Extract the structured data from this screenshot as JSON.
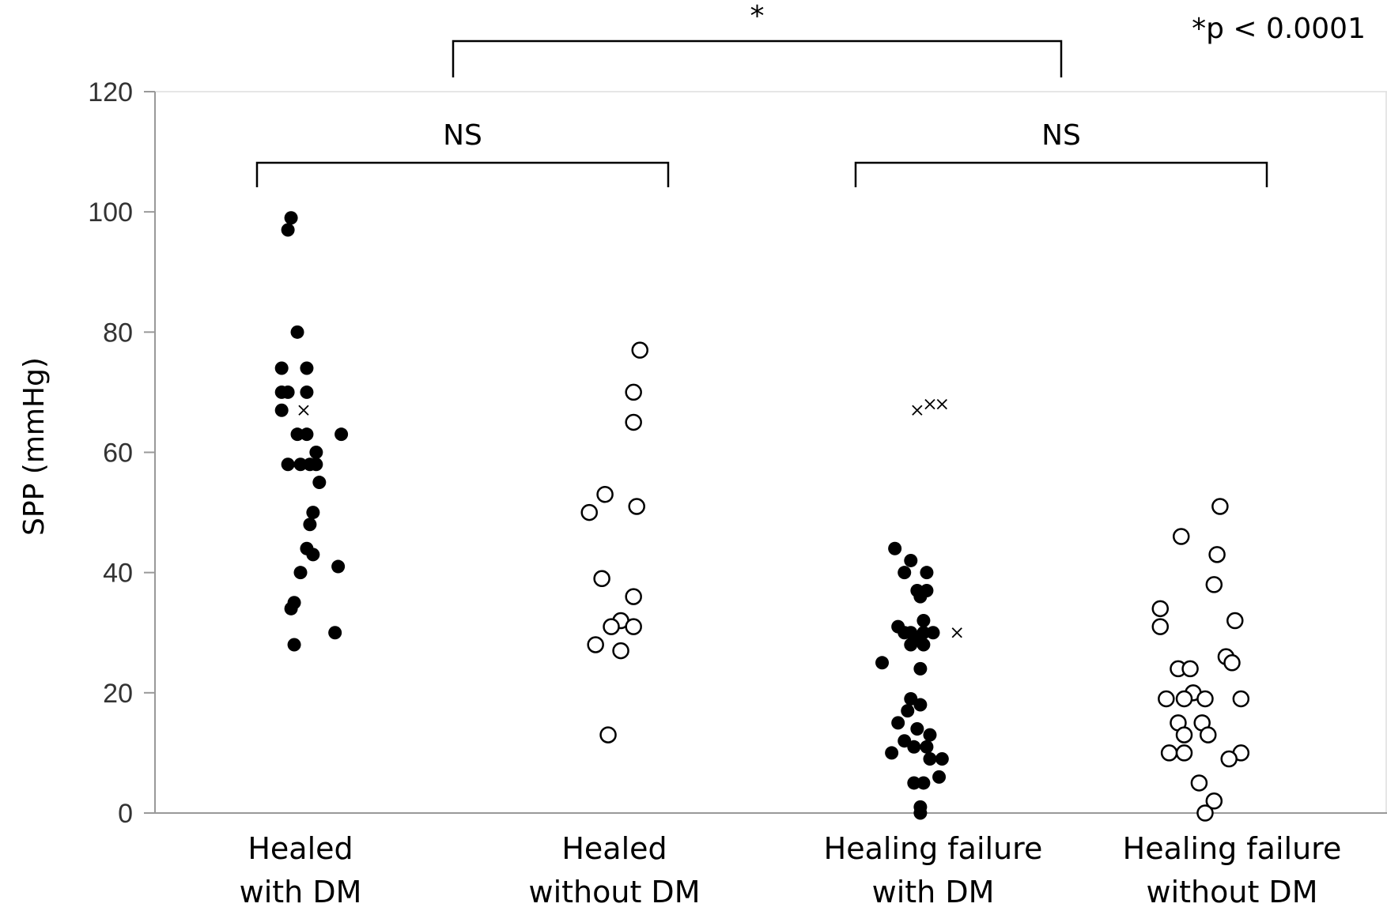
{
  "chart_data": {
    "type": "scatter",
    "ylabel": "SPP (mmHg)",
    "ylim": [
      0,
      120
    ],
    "yticks": [
      0,
      20,
      40,
      60,
      80,
      100,
      120
    ],
    "grid": false,
    "p_note": "*p < 0.0001",
    "categories": [
      {
        "line1": "Healed",
        "line2": "with DM"
      },
      {
        "line1": "Healed",
        "line2": "without DM"
      },
      {
        "line1": "Healing failure",
        "line2": "with DM"
      },
      {
        "line1": "Healing failure",
        "line2": "without DM"
      }
    ],
    "comparisons": [
      {
        "from": 0,
        "to": 1,
        "label": "NS"
      },
      {
        "from": 2,
        "to": 3,
        "label": "NS"
      },
      {
        "from": 0.6,
        "to": 2.4,
        "label": "*"
      }
    ],
    "colors": {
      "filled": "#000000",
      "open_stroke": "#000000",
      "open_fill": "#ffffff",
      "axis": "#999999"
    },
    "series": [
      {
        "marker": "filled",
        "points": [
          {
            "x": -0.03,
            "y": 99
          },
          {
            "x": -0.04,
            "y": 97
          },
          {
            "x": -0.01,
            "y": 80
          },
          {
            "x": -0.06,
            "y": 74
          },
          {
            "x": 0.02,
            "y": 74
          },
          {
            "x": -0.06,
            "y": 70
          },
          {
            "x": -0.04,
            "y": 70
          },
          {
            "x": 0.02,
            "y": 70
          },
          {
            "x": -0.06,
            "y": 67
          },
          {
            "x": -0.01,
            "y": 63
          },
          {
            "x": 0.02,
            "y": 63
          },
          {
            "x": 0.13,
            "y": 63
          },
          {
            "x": -0.04,
            "y": 58
          },
          {
            "x": 0.0,
            "y": 58
          },
          {
            "x": 0.03,
            "y": 58
          },
          {
            "x": 0.05,
            "y": 58
          },
          {
            "x": 0.05,
            "y": 60
          },
          {
            "x": 0.06,
            "y": 55
          },
          {
            "x": 0.04,
            "y": 50
          },
          {
            "x": 0.03,
            "y": 48
          },
          {
            "x": 0.02,
            "y": 44
          },
          {
            "x": 0.04,
            "y": 43
          },
          {
            "x": 0.12,
            "y": 41
          },
          {
            "x": 0.0,
            "y": 40
          },
          {
            "x": -0.02,
            "y": 35
          },
          {
            "x": -0.03,
            "y": 34
          },
          {
            "x": 0.11,
            "y": 30
          },
          {
            "x": -0.02,
            "y": 28
          }
        ]
      },
      {
        "marker": "cross",
        "points": [
          {
            "x": 0.01,
            "y": 67
          },
          {
            "x": 1.95,
            "y": 67
          },
          {
            "x": 1.99,
            "y": 68
          },
          {
            "x": 2.03,
            "y": 68
          },
          {
            "x": 2.08,
            "y": 30
          }
        ]
      },
      {
        "marker": "open",
        "points": [
          {
            "x": 1.08,
            "y": 77
          },
          {
            "x": 1.06,
            "y": 70
          },
          {
            "x": 1.06,
            "y": 65
          },
          {
            "x": 0.97,
            "y": 53
          },
          {
            "x": 0.92,
            "y": 50
          },
          {
            "x": 1.07,
            "y": 51
          },
          {
            "x": 0.96,
            "y": 39
          },
          {
            "x": 1.06,
            "y": 36
          },
          {
            "x": 1.02,
            "y": 32
          },
          {
            "x": 0.99,
            "y": 31
          },
          {
            "x": 1.06,
            "y": 31
          },
          {
            "x": 0.94,
            "y": 28
          },
          {
            "x": 1.02,
            "y": 27
          },
          {
            "x": 0.98,
            "y": 13
          }
        ]
      },
      {
        "marker": "filled",
        "points": [
          {
            "x": 1.88,
            "y": 44
          },
          {
            "x": 1.93,
            "y": 42
          },
          {
            "x": 1.91,
            "y": 40
          },
          {
            "x": 1.98,
            "y": 40
          },
          {
            "x": 1.95,
            "y": 37
          },
          {
            "x": 1.98,
            "y": 37
          },
          {
            "x": 1.96,
            "y": 36
          },
          {
            "x": 1.97,
            "y": 32
          },
          {
            "x": 1.89,
            "y": 31
          },
          {
            "x": 1.93,
            "y": 30
          },
          {
            "x": 1.97,
            "y": 30
          },
          {
            "x": 2.0,
            "y": 30
          },
          {
            "x": 1.91,
            "y": 30
          },
          {
            "x": 1.95,
            "y": 29
          },
          {
            "x": 1.93,
            "y": 28
          },
          {
            "x": 1.97,
            "y": 28
          },
          {
            "x": 1.84,
            "y": 25
          },
          {
            "x": 1.96,
            "y": 24
          },
          {
            "x": 1.93,
            "y": 19
          },
          {
            "x": 1.96,
            "y": 18
          },
          {
            "x": 1.92,
            "y": 17
          },
          {
            "x": 1.89,
            "y": 15
          },
          {
            "x": 1.95,
            "y": 14
          },
          {
            "x": 1.99,
            "y": 13
          },
          {
            "x": 1.91,
            "y": 12
          },
          {
            "x": 1.94,
            "y": 11
          },
          {
            "x": 1.98,
            "y": 11
          },
          {
            "x": 1.87,
            "y": 10
          },
          {
            "x": 1.99,
            "y": 9
          },
          {
            "x": 2.03,
            "y": 9
          },
          {
            "x": 2.02,
            "y": 6
          },
          {
            "x": 1.94,
            "y": 5
          },
          {
            "x": 1.97,
            "y": 5
          },
          {
            "x": 1.96,
            "y": 1
          },
          {
            "x": 1.96,
            "y": 0
          }
        ]
      },
      {
        "marker": "open",
        "points": [
          {
            "x": 2.96,
            "y": 51
          },
          {
            "x": 2.83,
            "y": 46
          },
          {
            "x": 2.95,
            "y": 43
          },
          {
            "x": 2.94,
            "y": 38
          },
          {
            "x": 2.76,
            "y": 34
          },
          {
            "x": 2.76,
            "y": 31
          },
          {
            "x": 3.01,
            "y": 32
          },
          {
            "x": 2.98,
            "y": 26
          },
          {
            "x": 3.0,
            "y": 25
          },
          {
            "x": 2.82,
            "y": 24
          },
          {
            "x": 2.86,
            "y": 24
          },
          {
            "x": 2.87,
            "y": 20
          },
          {
            "x": 2.78,
            "y": 19
          },
          {
            "x": 2.84,
            "y": 19
          },
          {
            "x": 2.91,
            "y": 19
          },
          {
            "x": 3.03,
            "y": 19
          },
          {
            "x": 2.82,
            "y": 15
          },
          {
            "x": 2.9,
            "y": 15
          },
          {
            "x": 2.84,
            "y": 13
          },
          {
            "x": 2.92,
            "y": 13
          },
          {
            "x": 2.79,
            "y": 10
          },
          {
            "x": 2.84,
            "y": 10
          },
          {
            "x": 3.03,
            "y": 10
          },
          {
            "x": 2.99,
            "y": 9
          },
          {
            "x": 2.89,
            "y": 5
          },
          {
            "x": 2.94,
            "y": 2
          },
          {
            "x": 2.91,
            "y": 0
          }
        ]
      }
    ]
  }
}
